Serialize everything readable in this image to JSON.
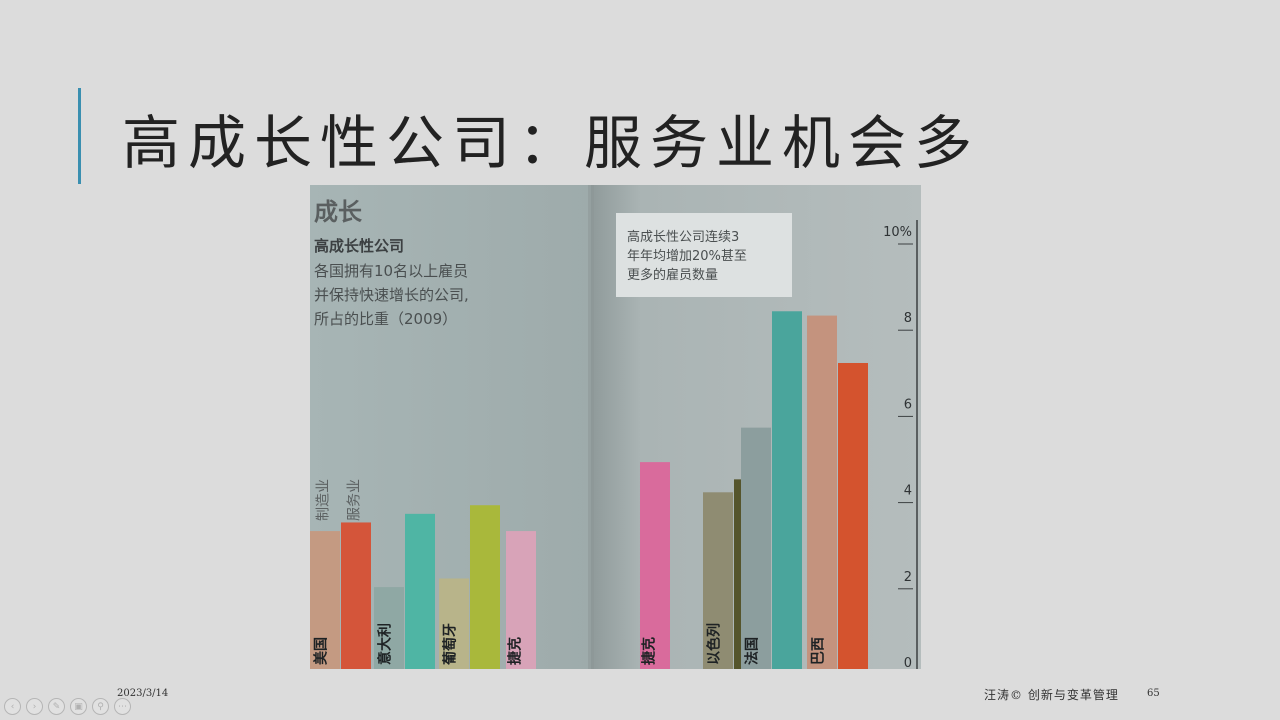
{
  "slide": {
    "title": "高成长性公司：服务业机会多",
    "date": "2023/3/14",
    "author": "汪涛© 创新与变革管理",
    "page_number": "65"
  },
  "nav_controls": [
    {
      "name": "prev-slide",
      "icon": "‹"
    },
    {
      "name": "next-slide",
      "icon": "›"
    },
    {
      "name": "pen-tool",
      "icon": "✎"
    },
    {
      "name": "slides-view",
      "icon": "▣"
    },
    {
      "name": "zoom",
      "icon": "⚲"
    },
    {
      "name": "more-options",
      "icon": "⋯"
    }
  ],
  "chart_data": {
    "type": "bar",
    "heading": "成长",
    "title": "高成长性公司",
    "subtitle": [
      "各国拥有10名以上雇员",
      "并保持快速增长的公司,",
      "所占的比重（2009）"
    ],
    "annotation": [
      "高成长性公司连续3",
      "年年均增加20%甚至",
      "更多的雇员数量"
    ],
    "categories": [
      "美国",
      "意大利",
      "葡萄牙",
      "捷克",
      "捷克",
      "以色列",
      "法国",
      "巴西"
    ],
    "series": [
      {
        "name": "制造业",
        "values": [
          3.2,
          1.9,
          2.1,
          null,
          null,
          4.1,
          5.6,
          8.2
        ]
      },
      {
        "name": "服务业",
        "values": [
          3.4,
          3.6,
          3.8,
          3.2,
          4.8,
          4.4,
          8.3,
          7.1
        ]
      }
    ],
    "colors": {
      "manufacturing": [
        "#c49a82",
        "#8fa8a4",
        "#b8b48a",
        "#c9a9b3",
        "#d07aa0",
        "#8f8c72",
        "#8c9e9e",
        "#c4937e"
      ],
      "services": [
        "#d4553a",
        "#4fb5a4",
        "#a9b83b",
        "#d8a3b8",
        "#d96b9c",
        "#55552c",
        "#4aa59c",
        "#d4532e"
      ]
    },
    "y_ticks": [
      "10%",
      "8",
      "6",
      "4",
      "2",
      "0"
    ],
    "ylim": [
      0,
      10
    ],
    "legend": "vertical labels above first group"
  }
}
